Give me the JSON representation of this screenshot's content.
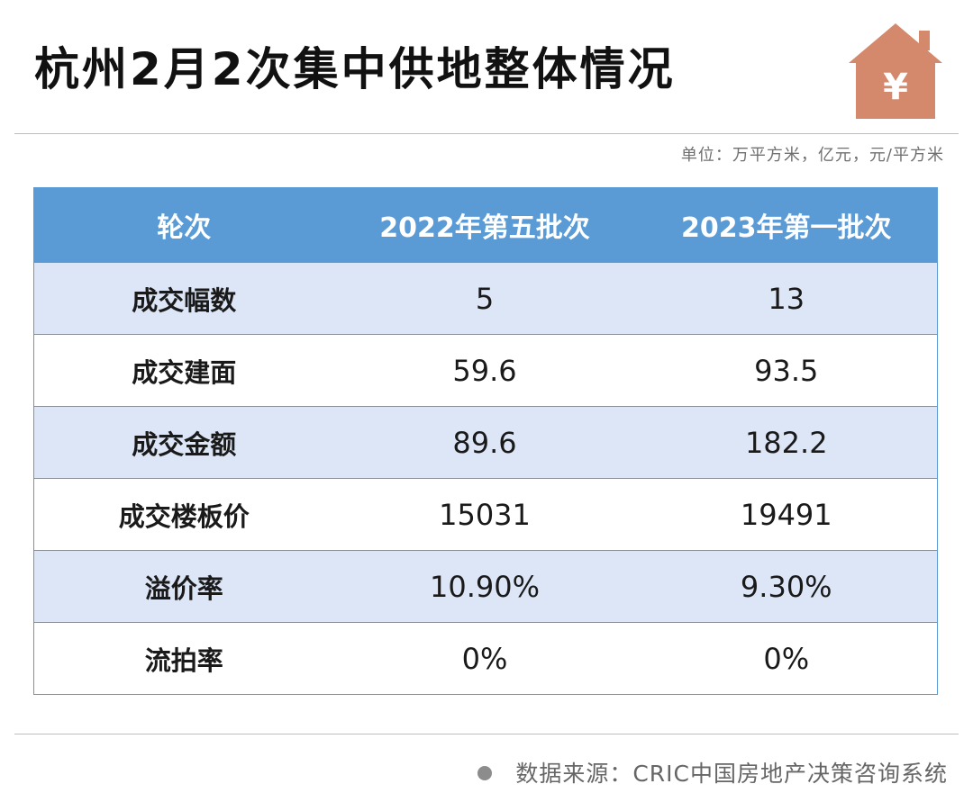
{
  "header": {
    "title": "杭州2月2次集中供地整体情况",
    "icon": "house-yen-icon",
    "icon_symbol": "¥",
    "icon_color": "#d4886c"
  },
  "unit_note": "单位：万平方米，亿元，元/平方米",
  "table": {
    "header_color": "#5b9bd5",
    "stripe_color": "#dde6f7",
    "columns": [
      "轮次",
      "2022年第五批次",
      "2023年第一批次"
    ],
    "rows": [
      [
        "成交幅数",
        "5",
        "13"
      ],
      [
        "成交建面",
        "59.6",
        "93.5"
      ],
      [
        "成交金额",
        "89.6",
        "182.2"
      ],
      [
        "成交楼板价",
        "15031",
        "19491"
      ],
      [
        "溢价率",
        "10.90%",
        "9.30%"
      ],
      [
        "流拍率",
        "0%",
        "0%"
      ]
    ]
  },
  "footer": {
    "source": "数据来源：CRIC中国房地产决策咨询系统"
  }
}
